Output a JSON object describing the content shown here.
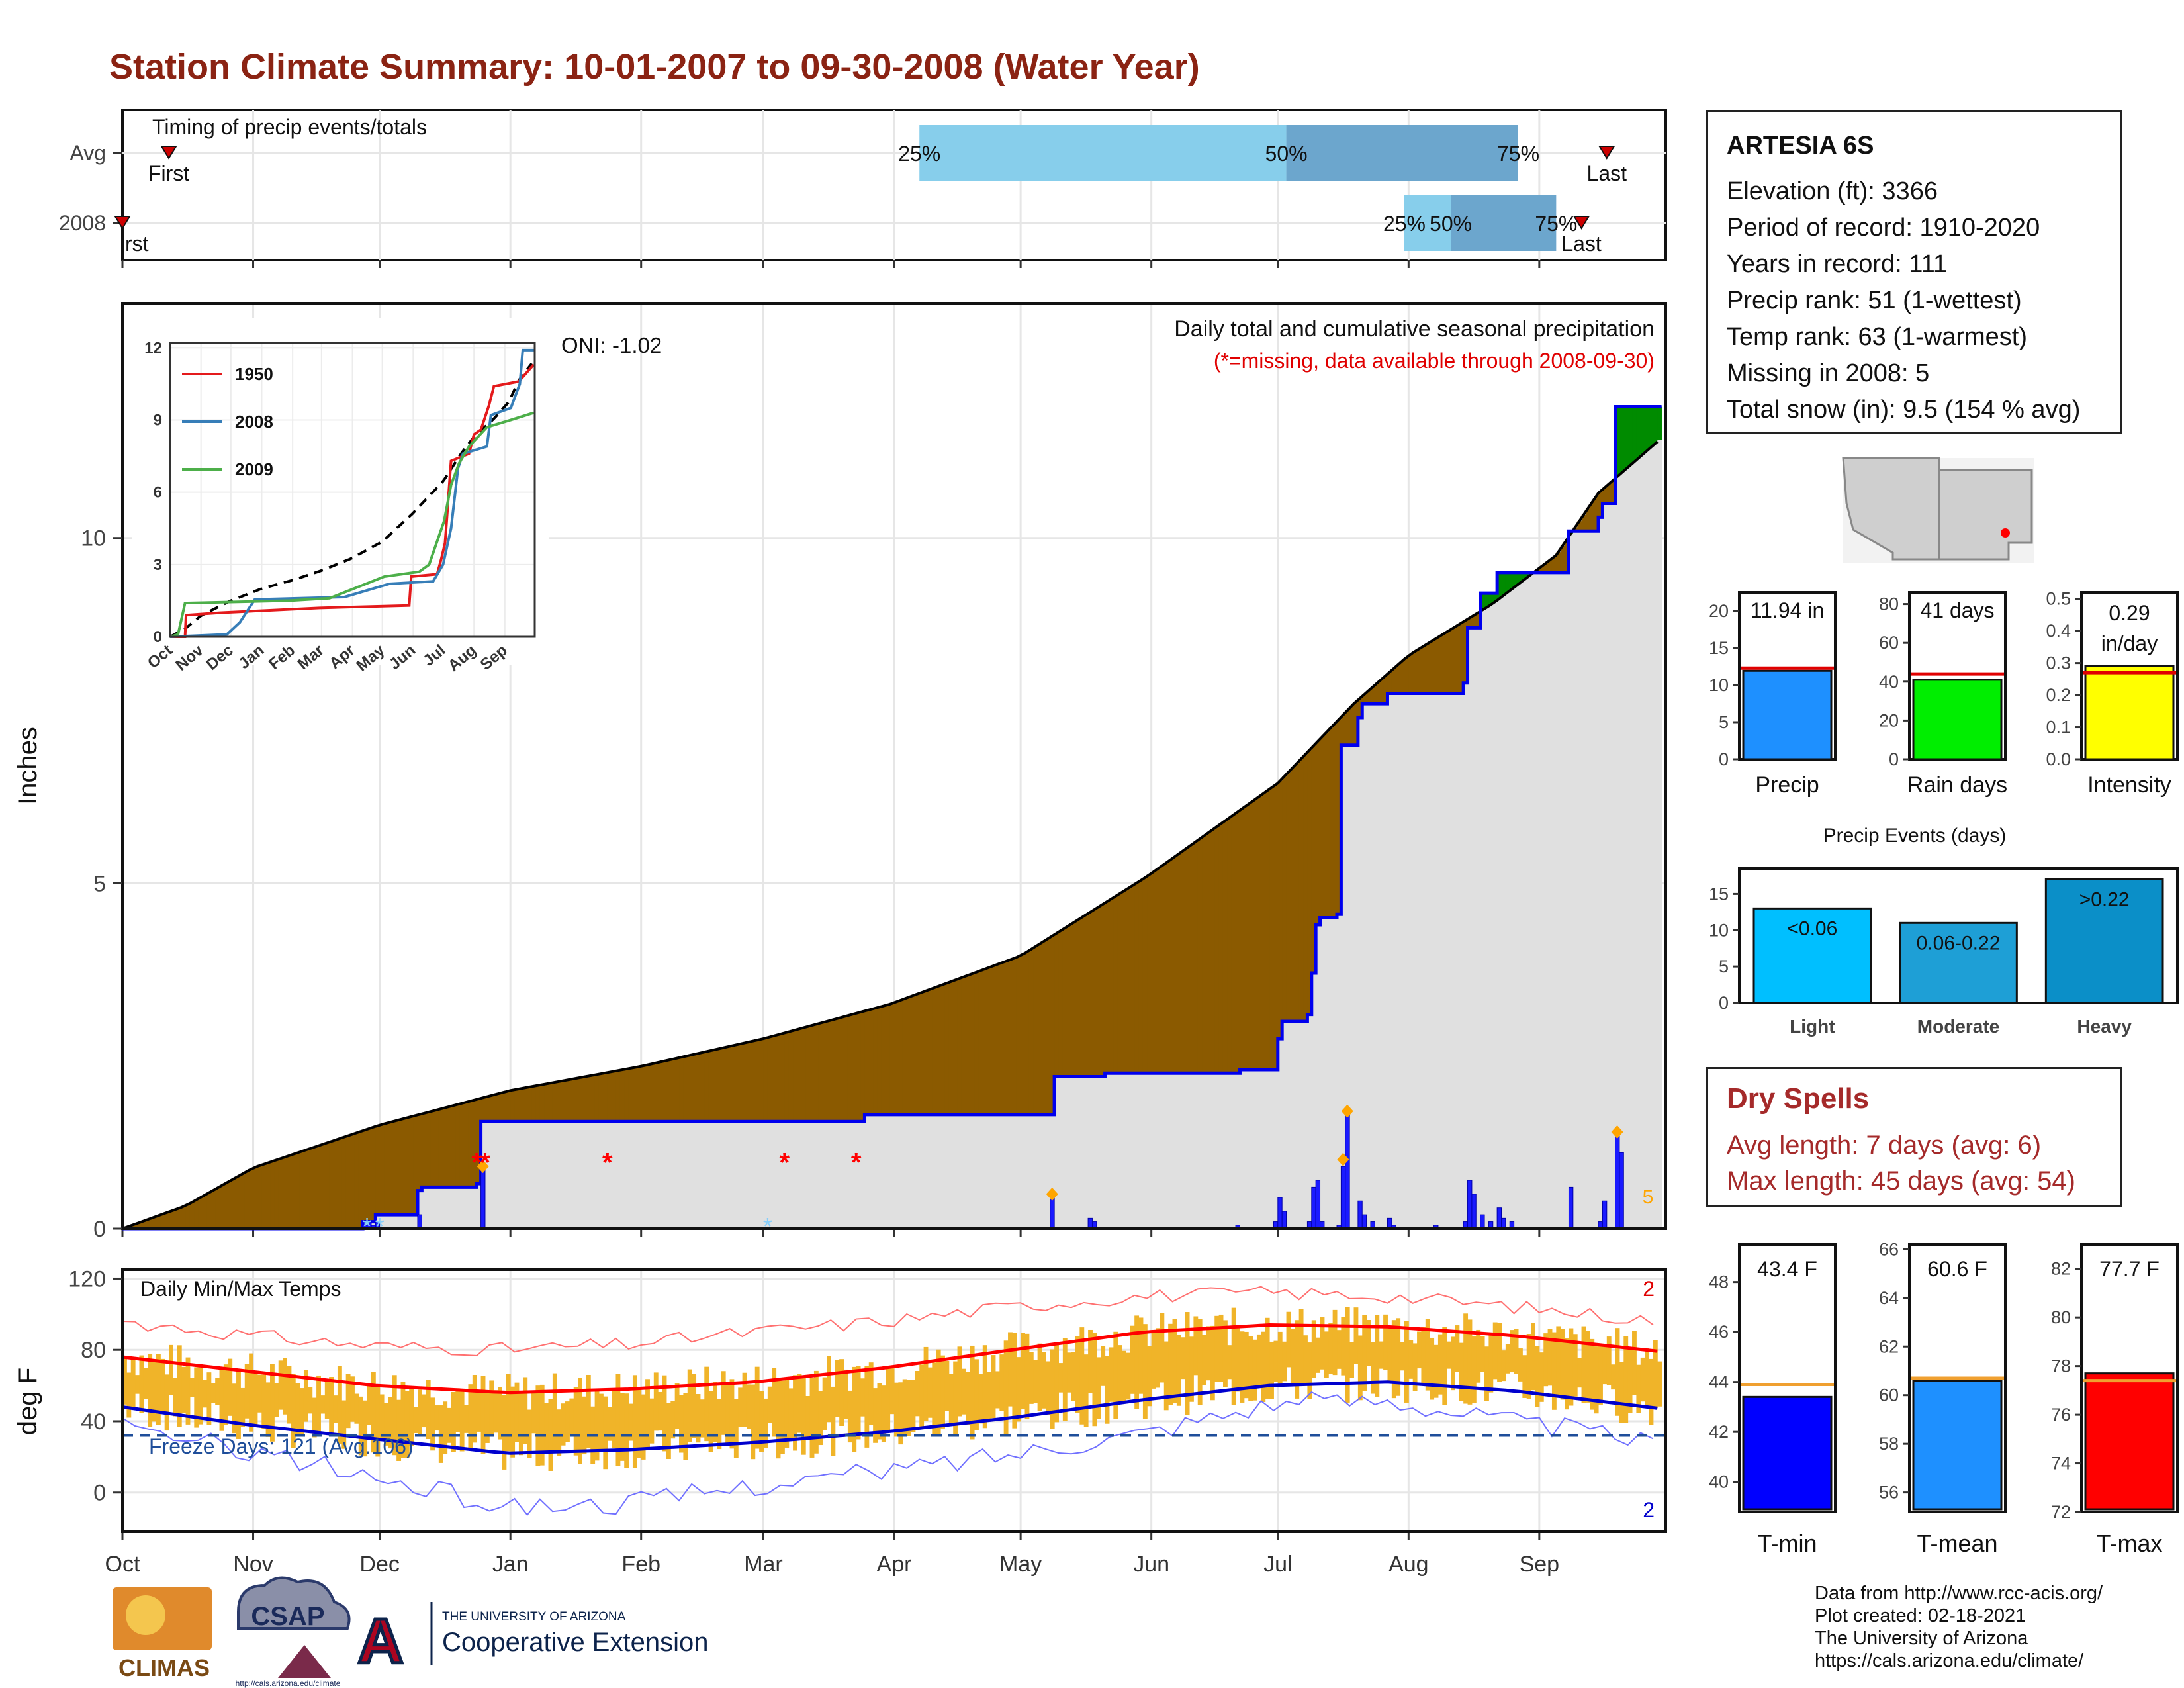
{
  "header": {
    "title": "Station Climate Summary: 10-01-2007 to 09-30-2008 (Water Year)"
  },
  "months": [
    "Oct",
    "Nov",
    "Dec",
    "Jan",
    "Feb",
    "Mar",
    "Apr",
    "May",
    "Jun",
    "Jul",
    "Aug",
    "Sep"
  ],
  "timing": {
    "label": "Timing of precip events/totals",
    "rows": [
      "Avg",
      "2008"
    ],
    "first_label": "First",
    "first_label_clipped": "rst",
    "last_label": "Last",
    "pct_labels": [
      "25%",
      "50%",
      "75%"
    ],
    "avg": {
      "first_day": 11,
      "p25": 189,
      "p50": 276,
      "p75": 331,
      "last_day": 352
    },
    "y2008": {
      "first_day": 0,
      "p25": 304,
      "p50": 315,
      "p75": 340,
      "last_day": 346
    },
    "colors": {
      "light": "#87ceeb",
      "dark": "#6ca6cd",
      "marker": "#cc0000"
    }
  },
  "precip": {
    "title": "Daily total and cumulative seasonal precipitation",
    "note": "(*=missing, data available through 2008-09-30)",
    "oni": "ONI: -1.02",
    "ylabel": "Inches",
    "yticks": [
      0,
      5,
      10
    ],
    "ylim": [
      0,
      13.4
    ],
    "count_label": "5",
    "chart_data": {
      "type": "area",
      "avg_cumulative": [
        [
          0,
          0
        ],
        [
          15,
          0.33
        ],
        [
          31,
          0.88
        ],
        [
          61,
          1.5
        ],
        [
          92,
          2.0
        ],
        [
          123,
          2.35
        ],
        [
          152,
          2.75
        ],
        [
          182,
          3.25
        ],
        [
          213,
          3.95
        ],
        [
          243,
          5.1
        ],
        [
          274,
          6.45
        ],
        [
          292,
          7.6
        ],
        [
          305,
          8.3
        ],
        [
          325,
          9.05
        ],
        [
          340,
          9.75
        ],
        [
          350,
          10.65
        ],
        [
          366,
          11.5
        ]
      ],
      "obs_cumulative": [
        [
          0,
          0
        ],
        [
          57,
          0.1
        ],
        [
          60,
          0.2
        ],
        [
          70,
          0.55
        ],
        [
          71,
          0.6
        ],
        [
          84,
          0.65
        ],
        [
          85,
          1.55
        ],
        [
          175,
          1.55
        ],
        [
          176,
          1.65
        ],
        [
          220,
          1.65
        ],
        [
          221,
          2.2
        ],
        [
          232,
          2.2
        ],
        [
          233,
          2.25
        ],
        [
          264,
          2.25
        ],
        [
          265,
          2.3
        ],
        [
          273,
          2.3
        ],
        [
          274,
          2.75
        ],
        [
          275,
          3.0
        ],
        [
          281,
          3.1
        ],
        [
          282,
          3.7
        ],
        [
          283,
          4.4
        ],
        [
          284,
          4.5
        ],
        [
          288,
          4.55
        ],
        [
          289,
          7.0
        ],
        [
          293,
          7.4
        ],
        [
          294,
          7.6
        ],
        [
          300,
          7.75
        ],
        [
          318,
          7.9
        ],
        [
          319,
          8.7
        ],
        [
          322,
          9.2
        ],
        [
          326,
          9.5
        ],
        [
          342,
          9.5
        ],
        [
          343,
          10.1
        ],
        [
          350,
          10.3
        ],
        [
          351,
          10.5
        ],
        [
          354,
          11.9
        ],
        [
          365,
          11.9
        ]
      ],
      "daily_bars": [
        [
          57,
          0.05
        ],
        [
          58,
          0.08
        ],
        [
          59,
          0.05
        ],
        [
          60,
          0.1
        ],
        [
          70,
          0.2
        ],
        [
          85,
          0.9
        ],
        [
          220,
          0.5
        ],
        [
          229,
          0.15
        ],
        [
          230,
          0.1
        ],
        [
          264,
          0.05
        ],
        [
          273,
          0.1
        ],
        [
          274,
          0.45
        ],
        [
          275,
          0.25
        ],
        [
          281,
          0.1
        ],
        [
          282,
          0.6
        ],
        [
          283,
          0.7
        ],
        [
          284,
          0.1
        ],
        [
          288,
          0.05
        ],
        [
          289,
          0.9
        ],
        [
          290,
          1.7
        ],
        [
          293,
          0.4
        ],
        [
          294,
          0.2
        ],
        [
          296,
          0.1
        ],
        [
          300,
          0.15
        ],
        [
          301,
          0.05
        ],
        [
          311,
          0.05
        ],
        [
          318,
          0.1
        ],
        [
          319,
          0.7
        ],
        [
          320,
          0.5
        ],
        [
          322,
          0.2
        ],
        [
          324,
          0.1
        ],
        [
          326,
          0.3
        ],
        [
          327,
          0.15
        ],
        [
          329,
          0.1
        ],
        [
          343,
          0.6
        ],
        [
          350,
          0.1
        ],
        [
          351,
          0.4
        ],
        [
          354,
          1.4
        ],
        [
          355,
          1.1
        ]
      ],
      "diamonds": [
        [
          85,
          0.9
        ],
        [
          220,
          0.5
        ],
        [
          290,
          1.7
        ],
        [
          289,
          1.0
        ],
        [
          354,
          1.4
        ]
      ],
      "missing": [
        [
          84,
          1.0
        ],
        [
          86,
          1.0
        ],
        [
          115,
          1.0
        ],
        [
          157,
          1.0
        ],
        [
          174,
          1.0
        ]
      ],
      "snow_marks": [
        [
          58,
          0.05
        ],
        [
          61,
          0.05
        ],
        [
          153,
          0.05
        ]
      ]
    },
    "colors": {
      "deficit": "#8b5a00",
      "surplus": "#008b00",
      "obs": "#0000ee",
      "bars": "#1a1aff",
      "diamond": "#ffa500",
      "missing": "#ff0000",
      "snow": "#87cefa"
    }
  },
  "inset": {
    "yticks": [
      0,
      3,
      6,
      9,
      12
    ],
    "chart_data": {
      "type": "line",
      "ylim": [
        0,
        12.2
      ],
      "series": [
        {
          "name": "1950",
          "color": "#e41a1c",
          "values": [
            [
              0,
              0
            ],
            [
              15,
              0
            ],
            [
              16,
              0.9
            ],
            [
              50,
              1.0
            ],
            [
              100,
              1.1
            ],
            [
              150,
              1.2
            ],
            [
              240,
              1.3
            ],
            [
              242,
              2.5
            ],
            [
              268,
              2.6
            ],
            [
              272,
              3.2
            ],
            [
              276,
              3.9
            ],
            [
              282,
              7.3
            ],
            [
              300,
              7.6
            ],
            [
              305,
              8.4
            ],
            [
              312,
              8.6
            ],
            [
              320,
              9.6
            ],
            [
              325,
              10.4
            ],
            [
              350,
              10.6
            ],
            [
              365,
              11.3
            ]
          ]
        },
        {
          "name": "2008",
          "color": "#377eb8",
          "values": [
            [
              0,
              0
            ],
            [
              57,
              0.1
            ],
            [
              70,
              0.6
            ],
            [
              85,
              1.55
            ],
            [
              175,
              1.65
            ],
            [
              220,
              2.2
            ],
            [
              264,
              2.3
            ],
            [
              274,
              3.0
            ],
            [
              282,
              4.5
            ],
            [
              289,
              7.0
            ],
            [
              294,
              7.6
            ],
            [
              318,
              7.9
            ],
            [
              322,
              9.2
            ],
            [
              342,
              9.5
            ],
            [
              351,
              10.5
            ],
            [
              354,
              11.9
            ],
            [
              365,
              11.9
            ]
          ]
        },
        {
          "name": "2009",
          "color": "#4daf4a",
          "values": [
            [
              0,
              0
            ],
            [
              8,
              0.1
            ],
            [
              15,
              1.4
            ],
            [
              120,
              1.5
            ],
            [
              160,
              1.6
            ],
            [
              215,
              2.5
            ],
            [
              250,
              2.7
            ],
            [
              260,
              3.0
            ],
            [
              275,
              4.8
            ],
            [
              282,
              6.3
            ],
            [
              290,
              7.2
            ],
            [
              300,
              7.9
            ],
            [
              318,
              8.7
            ],
            [
              342,
              9.0
            ],
            [
              365,
              9.3
            ]
          ]
        }
      ]
    }
  },
  "temps": {
    "label": "Daily Min/Max Temps",
    "ylabel": "deg F",
    "yticks": [
      0,
      40,
      80,
      120
    ],
    "ylim": [
      -22,
      125
    ],
    "freeze_label": "Freeze Days: 121 (Avg.106)",
    "max_count": "2",
    "min_count": "2",
    "chart_data": {
      "type": "line",
      "avg_max": [
        [
          0,
          76
        ],
        [
          30,
          68
        ],
        [
          60,
          60
        ],
        [
          91,
          56
        ],
        [
          120,
          58
        ],
        [
          150,
          62
        ],
        [
          181,
          70
        ],
        [
          211,
          80
        ],
        [
          242,
          90
        ],
        [
          272,
          94
        ],
        [
          300,
          93
        ],
        [
          330,
          88
        ],
        [
          365,
          79
        ]
      ],
      "avg_min": [
        [
          0,
          48
        ],
        [
          30,
          38
        ],
        [
          60,
          30
        ],
        [
          91,
          22
        ],
        [
          120,
          24
        ],
        [
          150,
          28
        ],
        [
          181,
          34
        ],
        [
          211,
          42
        ],
        [
          242,
          52
        ],
        [
          272,
          60
        ],
        [
          300,
          62
        ],
        [
          330,
          57
        ],
        [
          365,
          47
        ]
      ],
      "rec_high": [
        [
          0,
          96
        ],
        [
          30,
          88
        ],
        [
          60,
          82
        ],
        [
          91,
          80
        ],
        [
          120,
          83
        ],
        [
          150,
          90
        ],
        [
          181,
          96
        ],
        [
          211,
          104
        ],
        [
          242,
          110
        ],
        [
          272,
          112
        ],
        [
          300,
          110
        ],
        [
          330,
          104
        ],
        [
          365,
          96
        ]
      ],
      "rec_low": [
        [
          0,
          36
        ],
        [
          30,
          24
        ],
        [
          60,
          8
        ],
        [
          91,
          -8
        ],
        [
          120,
          -6
        ],
        [
          150,
          4
        ],
        [
          181,
          12
        ],
        [
          211,
          22
        ],
        [
          242,
          34
        ],
        [
          272,
          50
        ],
        [
          300,
          52
        ],
        [
          330,
          40
        ],
        [
          365,
          28
        ]
      ],
      "freeze_line": 32
    },
    "colors": {
      "range": "#f0b429",
      "avg_max": "#ff0000",
      "avg_min": "#0000cd",
      "rec_high": "#ff7070",
      "rec_low": "#7070ff",
      "freeze": "#1f4e9a"
    }
  },
  "station": {
    "name": "ARTESIA 6S",
    "lines": [
      "Elevation (ft): 3366",
      "Period of record: 1910-2020",
      "Years in record: 111",
      "Precip rank: 51 (1-wettest)",
      "Temp rank: 63 (1-warmest)",
      "Missing in 2008: 5",
      "Total snow (in): 9.5 (154 % avg)"
    ]
  },
  "mini_bars": [
    {
      "label": "Precip",
      "value_label": "11.94 in",
      "value": 11.94,
      "avg": 12.3,
      "yticks": [
        0,
        5,
        10,
        15,
        20
      ],
      "ymax": 22.5,
      "color": "#1e90ff"
    },
    {
      "label": "Rain days",
      "value_label": "41 days",
      "value": 41,
      "avg": 44,
      "yticks": [
        0,
        20,
        40,
        60,
        80
      ],
      "ymax": 86,
      "color": "#00ee00"
    },
    {
      "label": "Intensity",
      "value_label": "0.29 in/day",
      "value": 0.29,
      "avg": 0.27,
      "yticks": [
        "0.0",
        "0.1",
        "0.2",
        "0.3",
        "0.4",
        "0.5"
      ],
      "ymax": 0.52,
      "color": "#ffff00"
    }
  ],
  "events": {
    "title": "Precip Events (days)",
    "yticks": [
      0,
      5,
      10,
      15
    ],
    "ymax": 18.5,
    "chart_data": {
      "type": "bar",
      "categories": [
        "Light",
        "Moderate",
        "Heavy"
      ],
      "bar_labels": [
        "<0.06",
        "0.06-0.22",
        ">0.22"
      ],
      "values": [
        13,
        11,
        17
      ],
      "colors": [
        "#00bfff",
        "#1e9fd6",
        "#0b8fc8"
      ]
    }
  },
  "dry": {
    "title": "Dry Spells",
    "avg": "Avg length: 7 days (avg: 6)",
    "max": "Max length: 45 days (avg: 54)"
  },
  "temp_bars": [
    {
      "label": "T-min",
      "value_label": "43.4 F",
      "value": 43.4,
      "avg": 43.9,
      "yticks": [
        40,
        42,
        44,
        46,
        48
      ],
      "ymin": 38.8,
      "ymax": 49.5,
      "color": "#0000ff"
    },
    {
      "label": "T-mean",
      "value_label": "60.6 F",
      "value": 60.6,
      "avg": 60.7,
      "yticks": [
        56,
        58,
        60,
        62,
        64,
        66
      ],
      "ymin": 55.2,
      "ymax": 66.2,
      "color": "#1e90ff"
    },
    {
      "label": "T-max",
      "value_label": "77.7 F",
      "value": 77.7,
      "avg": 77.4,
      "yticks": [
        72,
        74,
        76,
        78,
        80,
        82
      ],
      "ymin": 72,
      "ymax": 83,
      "color": "#ff0000"
    }
  ],
  "credits": [
    "Data from http://www.rcc-acis.org/",
    "Plot created: 02-18-2021",
    "The University of Arizona",
    "https://cals.arizona.edu/climate/"
  ],
  "logos": {
    "climas": "CLIMAS",
    "csap": "CSAP",
    "csap_url": "http://cals.arizona.edu/climate",
    "ua_top": "THE UNIVERSITY OF ARIZONA",
    "ua_main": "Cooperative Extension"
  }
}
